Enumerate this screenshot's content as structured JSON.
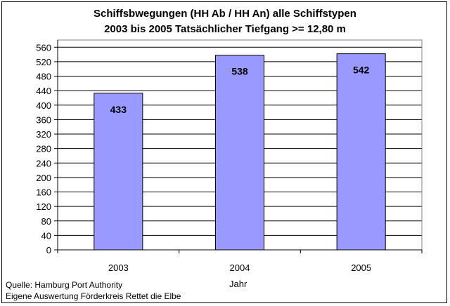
{
  "chart_data": {
    "type": "bar",
    "title": "Schiffsbwegungen (HH Ab / HH An) alle Schiffstypen",
    "subtitle": "2003 bis 2005  Tatsächlicher Tiefgang >= 12,80 m",
    "categories": [
      "2003",
      "2004",
      "2005"
    ],
    "values": [
      433,
      538,
      542
    ],
    "data_labels": [
      "433",
      "538",
      "542"
    ],
    "xlabel": "Jahr",
    "ylabel": "",
    "ylim": [
      0,
      580
    ],
    "yticks": [
      0,
      40,
      80,
      120,
      160,
      200,
      240,
      280,
      320,
      360,
      400,
      440,
      480,
      520,
      560
    ],
    "grid": true,
    "legend": "none"
  },
  "colors": {
    "bar_fill": "#9999ff",
    "bar_edge": "#000000",
    "grid": "#000000",
    "background": "#ffffff"
  },
  "source": {
    "line1": "Quelle: Hamburg Port Authority",
    "line2": "Eigene Auswertung Förderkreis Rettet die Elbe"
  }
}
